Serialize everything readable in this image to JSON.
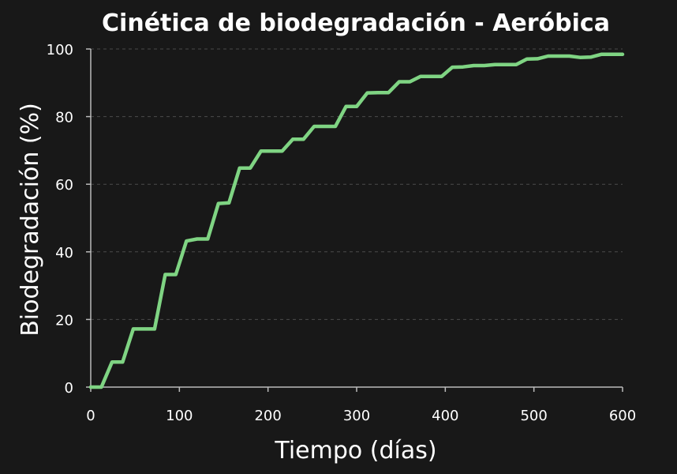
{
  "chart_data": {
    "type": "line",
    "title": "Cinética de biodegradación - Aeróbica",
    "xlabel": "Tiempo (días)",
    "ylabel": "Biodegradación (%)",
    "xlim": [
      0,
      600
    ],
    "ylim": [
      0,
      100
    ],
    "xticks": [
      0,
      100,
      200,
      300,
      400,
      500,
      600
    ],
    "yticks": [
      0,
      20,
      40,
      60,
      80,
      100
    ],
    "grid": "horizontal-dashed",
    "colors": {
      "background": "#181818",
      "line": "#7fd483",
      "text": "#ffffff"
    },
    "series": [
      {
        "x": [
          0,
          12,
          24,
          36,
          48,
          60,
          72,
          84,
          96,
          108,
          120,
          132,
          144,
          156,
          168,
          180,
          192,
          204,
          216,
          228,
          240,
          252,
          264,
          276,
          288,
          300,
          312,
          324,
          336,
          348,
          360,
          372,
          384,
          396,
          408,
          420,
          432,
          444,
          456,
          468,
          480,
          492,
          504,
          516,
          528,
          540,
          552,
          564,
          576,
          588,
          600
        ],
        "y": [
          0,
          0,
          7.4,
          7.4,
          17.2,
          17.2,
          17.2,
          33.3,
          33.3,
          43.2,
          43.8,
          43.8,
          54.3,
          54.5,
          64.8,
          64.8,
          69.8,
          69.8,
          69.8,
          73.3,
          73.3,
          77.1,
          77.1,
          77.1,
          83.0,
          83.0,
          87.0,
          87.1,
          87.1,
          90.3,
          90.3,
          91.9,
          91.9,
          91.9,
          94.6,
          94.7,
          95.1,
          95.1,
          95.4,
          95.4,
          95.4,
          97.0,
          97.1,
          97.9,
          97.9,
          97.9,
          97.5,
          97.6,
          98.4,
          98.4,
          98.4
        ]
      }
    ]
  }
}
